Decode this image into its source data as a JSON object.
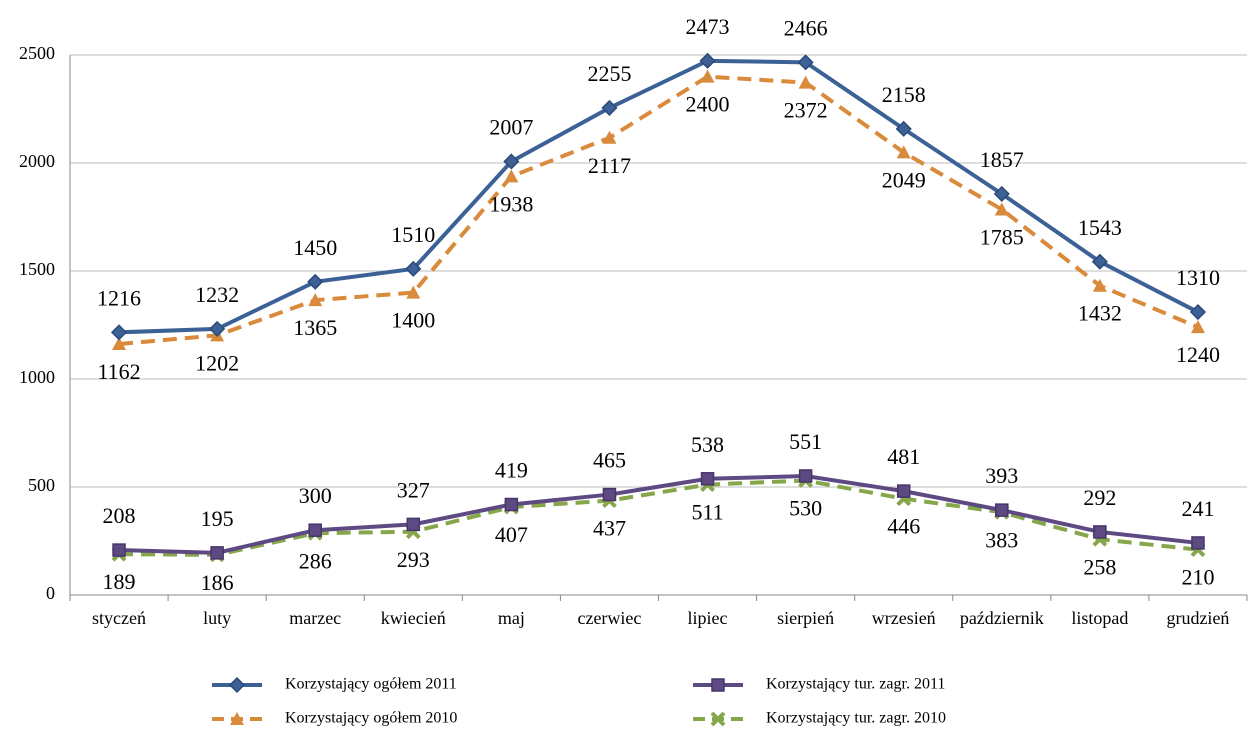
{
  "chart_data": {
    "type": "line",
    "categories": [
      "styczeń",
      "luty",
      "marzec",
      "kwiecień",
      "maj",
      "czerwiec",
      "lipiec",
      "sierpień",
      "wrzesień",
      "październik",
      "listopad",
      "grudzień"
    ],
    "series": [
      {
        "name": "Korzystający ogółem 2011",
        "color": "#3b6196",
        "label_color": "#5b8fd6",
        "marker": "diamond",
        "dashed": false,
        "label_side": "above",
        "values": [
          1216,
          1232,
          1450,
          1510,
          2007,
          2255,
          2473,
          2466,
          2158,
          1857,
          1543,
          1310
        ]
      },
      {
        "name": "Korzystający ogółem 2010",
        "color": "#d98a3a",
        "label_color": "#e0782a",
        "marker": "triangle",
        "dashed": true,
        "label_side": "below",
        "values": [
          1162,
          1202,
          1365,
          1400,
          1938,
          2117,
          2400,
          2372,
          2049,
          1785,
          1432,
          1240
        ]
      },
      {
        "name": "Korzystający tur. zagr. 2011",
        "color": "#5e4a82",
        "label_color": "#5e4a82",
        "marker": "square",
        "dashed": false,
        "label_side": "above",
        "values": [
          208,
          195,
          300,
          327,
          419,
          465,
          538,
          551,
          481,
          393,
          292,
          241
        ]
      },
      {
        "name": "Korzystający tur. zagr. 2010",
        "color": "#86a64a",
        "label_color": "#78a03e",
        "marker": "x",
        "dashed": true,
        "label_side": "below",
        "values": [
          189,
          186,
          286,
          293,
          407,
          437,
          511,
          530,
          446,
          383,
          258,
          210
        ]
      }
    ],
    "ylim": [
      0,
      2500
    ],
    "yticks": [
      0,
      500,
      1000,
      1500,
      2000,
      2500
    ],
    "grid": true,
    "legend": "bottom"
  }
}
